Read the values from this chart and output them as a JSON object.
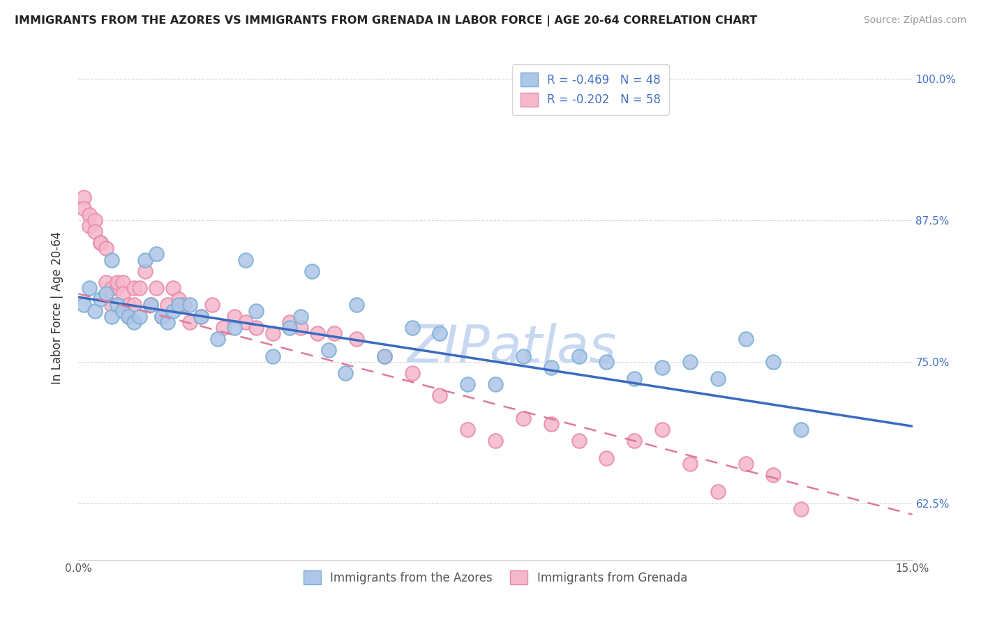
{
  "title": "IMMIGRANTS FROM THE AZORES VS IMMIGRANTS FROM GRENADA IN LABOR FORCE | AGE 20-64 CORRELATION CHART",
  "source": "Source: ZipAtlas.com",
  "ylabel": "In Labor Force | Age 20-64",
  "xlim": [
    0.0,
    0.15
  ],
  "ylim": [
    0.575,
    1.02
  ],
  "xticks": [
    0.0,
    0.05,
    0.1,
    0.15
  ],
  "xticklabels": [
    "0.0%",
    "",
    "",
    "15.0%"
  ],
  "yticks": [
    0.625,
    0.75,
    0.875,
    1.0
  ],
  "yticklabels": [
    "62.5%",
    "75.0%",
    "87.5%",
    "100.0%"
  ],
  "series1_color": "#aec6e8",
  "series1_edge": "#7aafd4",
  "series1_label": "Immigrants from the Azores",
  "series1_R": -0.469,
  "series1_N": 48,
  "series1_line_color": "#3a6bbf",
  "series2_color": "#f5b8ca",
  "series2_edge": "#e88aab",
  "series2_label": "Immigrants from Grenada",
  "series2_R": -0.202,
  "series2_N": 58,
  "series2_line_color": "#e07898",
  "watermark": "ZIPatlas",
  "watermark_color": "#c8d8f0",
  "azores_x": [
    0.001,
    0.002,
    0.003,
    0.004,
    0.005,
    0.006,
    0.006,
    0.007,
    0.008,
    0.009,
    0.01,
    0.011,
    0.012,
    0.013,
    0.014,
    0.015,
    0.016,
    0.017,
    0.018,
    0.02,
    0.022,
    0.025,
    0.028,
    0.03,
    0.032,
    0.035,
    0.038,
    0.04,
    0.042,
    0.045,
    0.048,
    0.05,
    0.055,
    0.06,
    0.065,
    0.07,
    0.075,
    0.08,
    0.085,
    0.09,
    0.095,
    0.1,
    0.105,
    0.11,
    0.115,
    0.12,
    0.125,
    0.13
  ],
  "azores_y": [
    0.8,
    0.815,
    0.795,
    0.805,
    0.81,
    0.79,
    0.84,
    0.8,
    0.795,
    0.79,
    0.785,
    0.79,
    0.84,
    0.8,
    0.845,
    0.79,
    0.785,
    0.795,
    0.8,
    0.8,
    0.79,
    0.77,
    0.78,
    0.84,
    0.795,
    0.755,
    0.78,
    0.79,
    0.83,
    0.76,
    0.74,
    0.8,
    0.755,
    0.78,
    0.775,
    0.73,
    0.73,
    0.755,
    0.745,
    0.755,
    0.75,
    0.735,
    0.745,
    0.75,
    0.735,
    0.77,
    0.75,
    0.69
  ],
  "grenada_x": [
    0.001,
    0.001,
    0.002,
    0.002,
    0.003,
    0.003,
    0.004,
    0.004,
    0.005,
    0.005,
    0.006,
    0.006,
    0.007,
    0.007,
    0.008,
    0.008,
    0.009,
    0.009,
    0.01,
    0.01,
    0.011,
    0.012,
    0.013,
    0.014,
    0.015,
    0.016,
    0.017,
    0.018,
    0.019,
    0.02,
    0.022,
    0.024,
    0.026,
    0.028,
    0.03,
    0.032,
    0.035,
    0.038,
    0.04,
    0.043,
    0.046,
    0.05,
    0.055,
    0.06,
    0.065,
    0.07,
    0.075,
    0.08,
    0.085,
    0.09,
    0.095,
    0.1,
    0.105,
    0.11,
    0.115,
    0.12,
    0.125,
    0.13
  ],
  "grenada_y": [
    0.895,
    0.885,
    0.88,
    0.87,
    0.875,
    0.865,
    0.855,
    0.855,
    0.85,
    0.82,
    0.815,
    0.8,
    0.815,
    0.82,
    0.82,
    0.81,
    0.8,
    0.79,
    0.815,
    0.8,
    0.815,
    0.83,
    0.8,
    0.815,
    0.79,
    0.8,
    0.815,
    0.805,
    0.8,
    0.785,
    0.79,
    0.8,
    0.78,
    0.79,
    0.785,
    0.78,
    0.775,
    0.785,
    0.78,
    0.775,
    0.775,
    0.77,
    0.755,
    0.74,
    0.72,
    0.69,
    0.68,
    0.7,
    0.695,
    0.68,
    0.665,
    0.68,
    0.69,
    0.66,
    0.635,
    0.66,
    0.65,
    0.62
  ],
  "line1_x0": 0.0,
  "line1_y0": 0.807,
  "line1_x1": 0.15,
  "line1_y1": 0.693,
  "line2_x0": 0.0,
  "line2_y0": 0.81,
  "line2_x1": 0.15,
  "line2_y1": 0.615
}
